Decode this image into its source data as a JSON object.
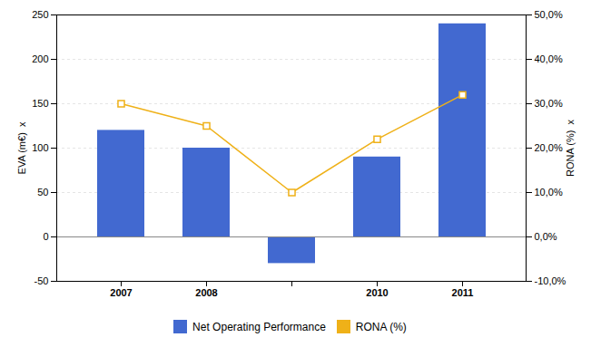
{
  "chart_data": {
    "type": "bar",
    "categories": [
      "2007",
      "2008",
      null,
      "2010",
      "2011"
    ],
    "series": [
      {
        "name": "Net Operating Performance",
        "type": "bar",
        "values": [
          120,
          100,
          -30,
          90,
          240
        ]
      },
      {
        "name": "RONA (%)",
        "type": "line",
        "marker": "square",
        "axis": "y2",
        "values": [
          0.3,
          0.25,
          0.1,
          0.22,
          0.32
        ]
      }
    ],
    "ylabel": "EVA (m€)  x",
    "y2label": "RONA (%)  x",
    "ylim": [
      -50,
      250
    ],
    "yticks": [
      -50,
      0,
      50,
      100,
      150,
      200,
      250
    ],
    "y2lim": [
      -0.1,
      0.5
    ],
    "y2ticks": [
      {
        "value": -0.1,
        "label": "-10,0%"
      },
      {
        "value": 0.0,
        "label": "0,0%"
      },
      {
        "value": 0.1,
        "label": "10,0%"
      },
      {
        "value": 0.2,
        "label": "20,0%"
      },
      {
        "value": 0.3,
        "label": "30,0%"
      },
      {
        "value": 0.4,
        "label": "40,0%"
      },
      {
        "value": 0.5,
        "label": "50,0%"
      }
    ],
    "grid": true,
    "legend": "bottom"
  }
}
